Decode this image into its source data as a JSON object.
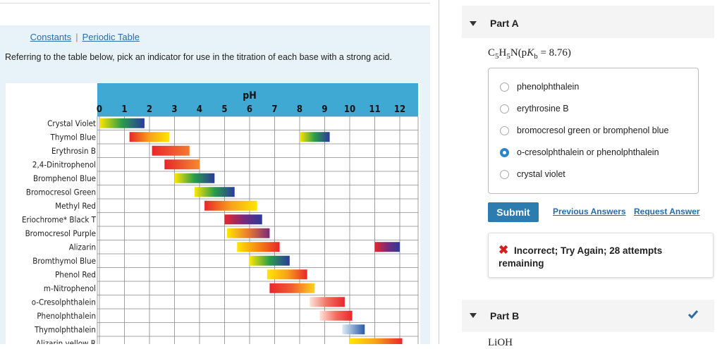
{
  "left_panel": {
    "links": [
      "Constants",
      "|",
      "Periodic Table"
    ],
    "question": "Referring to the table below, pick an indicator for use in the titration of each base with a strong acid.",
    "indicator_table": {
      "axis_label": "pH",
      "xlim": [
        0,
        12
      ],
      "ticks": [
        0,
        1,
        2,
        3,
        4,
        5,
        6,
        7,
        8,
        9,
        10,
        11,
        12
      ],
      "indicators": [
        {
          "name": "Crystal Violet",
          "ranges": [
            {
              "from": 0.0,
              "to": 1.8,
              "colors": [
                "#ffe600",
                "#2a9d4a",
                "#2b3a9c"
              ]
            }
          ]
        },
        {
          "name": "Thymol Blue",
          "ranges": [
            {
              "from": 1.2,
              "to": 2.8,
              "colors": [
                "#e8262b",
                "#f7a21b",
                "#ffe600"
              ]
            },
            {
              "from": 8.0,
              "to": 9.2,
              "colors": [
                "#ffe600",
                "#2a9d4a",
                "#2b3a9c"
              ]
            }
          ]
        },
        {
          "name": "Erythrosin B",
          "ranges": [
            {
              "from": 2.1,
              "to": 3.6,
              "colors": [
                "#e8262b",
                "#f47a30"
              ]
            }
          ]
        },
        {
          "name": "2,4-Dinitrophenol",
          "ranges": [
            {
              "from": 2.6,
              "to": 4.0,
              "colors": [
                "#e8262b",
                "#f58a30"
              ]
            }
          ]
        },
        {
          "name": "Bromphenol Blue",
          "ranges": [
            {
              "from": 3.0,
              "to": 4.6,
              "colors": [
                "#ffe600",
                "#2a9d4a",
                "#2b3a9c"
              ]
            }
          ]
        },
        {
          "name": "Bromocresol Green",
          "ranges": [
            {
              "from": 3.8,
              "to": 5.4,
              "colors": [
                "#ffe600",
                "#2a9d4a",
                "#2b3a9c"
              ]
            }
          ]
        },
        {
          "name": "Methyl Red",
          "ranges": [
            {
              "from": 4.2,
              "to": 6.3,
              "colors": [
                "#e8262b",
                "#f7a21b",
                "#ffe600"
              ]
            }
          ]
        },
        {
          "name": "Eriochrome* Black T",
          "ranges": [
            {
              "from": 5.0,
              "to": 6.5,
              "colors": [
                "#e8262b",
                "#7a2a7a",
                "#2b3a9c"
              ]
            }
          ]
        },
        {
          "name": "Bromocresol Purple",
          "ranges": [
            {
              "from": 5.1,
              "to": 6.8,
              "colors": [
                "#ffe600",
                "#e87a30",
                "#7a2a7a"
              ]
            }
          ]
        },
        {
          "name": "Alizarin",
          "ranges": [
            {
              "from": 5.5,
              "to": 7.2,
              "colors": [
                "#ffe600",
                "#e8262b"
              ]
            },
            {
              "from": 11.0,
              "to": 12.0,
              "colors": [
                "#e8262b",
                "#7a2a7a",
                "#2b3a9c"
              ]
            }
          ]
        },
        {
          "name": "Bromthymol Blue",
          "ranges": [
            {
              "from": 6.0,
              "to": 7.6,
              "colors": [
                "#ffe600",
                "#2a9d4a",
                "#2b3a9c"
              ]
            }
          ]
        },
        {
          "name": "Phenol Red",
          "ranges": [
            {
              "from": 6.7,
              "to": 8.3,
              "colors": [
                "#ffe600",
                "#f7a21b",
                "#e8262b"
              ]
            }
          ]
        },
        {
          "name": "m-Nitrophenol",
          "ranges": [
            {
              "from": 6.8,
              "to": 8.6,
              "colors": [
                "#e8262b",
                "#f06030",
                "#ffd21b"
              ]
            }
          ]
        },
        {
          "name": "o-Cresolphthalein",
          "ranges": [
            {
              "from": 8.4,
              "to": 9.8,
              "colors": [
                "#fce4d8",
                "#f07060",
                "#e8262b"
              ]
            }
          ]
        },
        {
          "name": "Phenolphthalein",
          "ranges": [
            {
              "from": 8.8,
              "to": 10.1,
              "colors": [
                "#fce4d8",
                "#f07060",
                "#e8262b"
              ]
            }
          ]
        },
        {
          "name": "Thymolphthalein",
          "ranges": [
            {
              "from": 9.7,
              "to": 10.6,
              "colors": [
                "#e0ecf8",
                "#2b5aa8"
              ]
            }
          ]
        },
        {
          "name": "Alizarin yellow R",
          "ranges": [
            {
              "from": 10.0,
              "to": 12.1,
              "colors": [
                "#ffe600",
                "#f7a21b",
                "#e8262b"
              ]
            }
          ]
        }
      ]
    }
  },
  "right_panel": {
    "part_a": {
      "title": "Part A",
      "formula": [
        {
          "text": "C"
        },
        {
          "text": "5",
          "sub": true
        },
        {
          "text": "H"
        },
        {
          "text": "5",
          "sub": true
        },
        {
          "text": "N(p"
        },
        {
          "text": "K",
          "italic": true
        },
        {
          "text": "b",
          "sub": true
        },
        {
          "text": " = 8.76)"
        }
      ],
      "options": [
        "phenolphthalein",
        "erythrosine B",
        "bromocresol green or bromphenol blue",
        "o-cresolphthalein or phenolphthalein",
        "crystal violet"
      ],
      "selected": 3,
      "submit": "Submit",
      "previous_answers": "Previous Answers",
      "request_answer": "Request Answer",
      "feedback": "Incorrect; Try Again; 28 attempts remaining"
    },
    "part_b": {
      "title": "Part B",
      "formula": "LiOH"
    }
  }
}
